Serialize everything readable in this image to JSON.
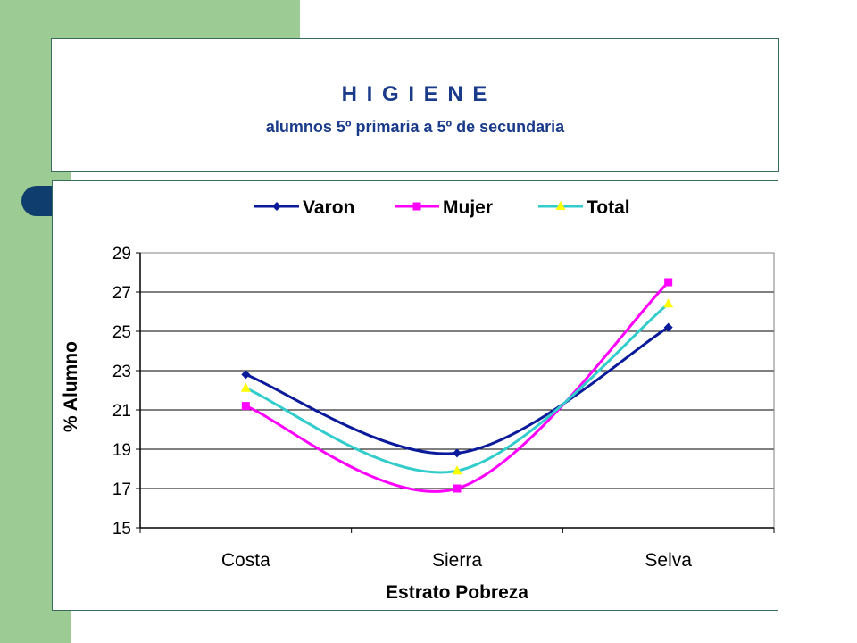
{
  "slide": {
    "title": "H I G I E N E",
    "subtitle": "alumnos 5º primaria a 5º de secundaria"
  },
  "colors": {
    "background_accent": "#9ccc94",
    "title_text": "#1a3a8a",
    "pill": "#0f3d6e",
    "border": "#3a6b60"
  },
  "chart_data": {
    "type": "line",
    "categories": [
      "Costa",
      "Sierra",
      "Selva"
    ],
    "series": [
      {
        "name": "Varon",
        "values": [
          22.8,
          18.8,
          25.2
        ],
        "color": "#0a1a9a",
        "marker": "diamond"
      },
      {
        "name": "Mujer",
        "values": [
          21.2,
          17.0,
          27.5
        ],
        "color": "#ff00ff",
        "marker": "square"
      },
      {
        "name": "Total",
        "values": [
          22.1,
          17.9,
          26.4
        ],
        "color": "#33cccc",
        "marker": "triangle",
        "marker_color": "#ffff00"
      }
    ],
    "xlabel": "Estrato Pobreza",
    "ylabel": "% Alumno",
    "ylim": [
      15,
      29
    ],
    "yticks": [
      15,
      17,
      19,
      21,
      23,
      25,
      27,
      29
    ],
    "grid": true,
    "legend_position": "top"
  }
}
